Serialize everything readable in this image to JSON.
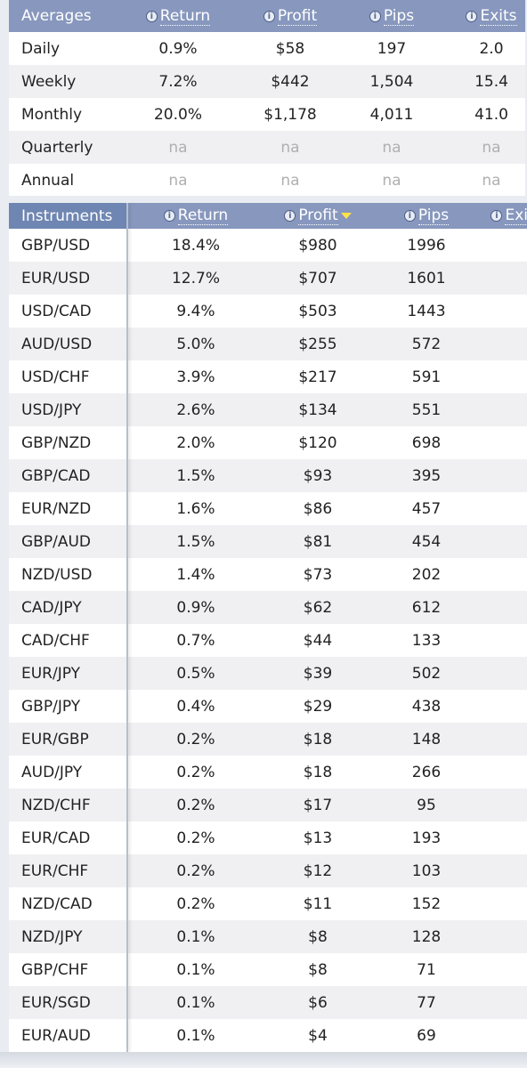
{
  "averages": {
    "headers": [
      "Averages",
      "Return",
      "Profit",
      "Pips",
      "Exits"
    ],
    "rows": [
      [
        "Daily",
        "0.9%",
        "$58",
        "197",
        "2.0"
      ],
      [
        "Weekly",
        "7.2%",
        "$442",
        "1,504",
        "15.4"
      ],
      [
        "Monthly",
        "20.0%",
        "$1,178",
        "4,011",
        "41.0"
      ],
      [
        "Quarterly",
        "na",
        "na",
        "na",
        "na"
      ],
      [
        "Annual",
        "na",
        "na",
        "na",
        "na"
      ]
    ]
  },
  "instruments": {
    "headers": [
      "Instruments",
      "Return",
      "Profit",
      "Pips",
      "Exits"
    ],
    "rows": [
      [
        "GBP/USD",
        "18.4%",
        "$980",
        "1996"
      ],
      [
        "EUR/USD",
        "12.7%",
        "$707",
        "1601"
      ],
      [
        "USD/CAD",
        "9.4%",
        "$503",
        "1443"
      ],
      [
        "AUD/USD",
        "5.0%",
        "$255",
        "572"
      ],
      [
        "USD/CHF",
        "3.9%",
        "$217",
        "591"
      ],
      [
        "USD/JPY",
        "2.6%",
        "$134",
        "551"
      ],
      [
        "GBP/NZD",
        "2.0%",
        "$120",
        "698"
      ],
      [
        "GBP/CAD",
        "1.5%",
        "$93",
        "395"
      ],
      [
        "EUR/NZD",
        "1.6%",
        "$86",
        "457"
      ],
      [
        "GBP/AUD",
        "1.5%",
        "$81",
        "454"
      ],
      [
        "NZD/USD",
        "1.4%",
        "$73",
        "202"
      ],
      [
        "CAD/JPY",
        "0.9%",
        "$62",
        "612"
      ],
      [
        "CAD/CHF",
        "0.7%",
        "$44",
        "133"
      ],
      [
        "EUR/JPY",
        "0.5%",
        "$39",
        "502"
      ],
      [
        "GBP/JPY",
        "0.4%",
        "$29",
        "438"
      ],
      [
        "EUR/GBP",
        "0.2%",
        "$18",
        "148"
      ],
      [
        "AUD/JPY",
        "0.2%",
        "$18",
        "266"
      ],
      [
        "NZD/CHF",
        "0.2%",
        "$17",
        "95"
      ],
      [
        "EUR/CAD",
        "0.2%",
        "$13",
        "193"
      ],
      [
        "EUR/CHF",
        "0.2%",
        "$12",
        "103"
      ],
      [
        "NZD/CAD",
        "0.2%",
        "$11",
        "152"
      ],
      [
        "NZD/JPY",
        "0.1%",
        "$8",
        "128"
      ],
      [
        "GBP/CHF",
        "0.1%",
        "$8",
        "71"
      ],
      [
        "EUR/SGD",
        "0.1%",
        "$6",
        "77"
      ],
      [
        "EUR/AUD",
        "0.1%",
        "$4",
        "69"
      ]
    ]
  }
}
